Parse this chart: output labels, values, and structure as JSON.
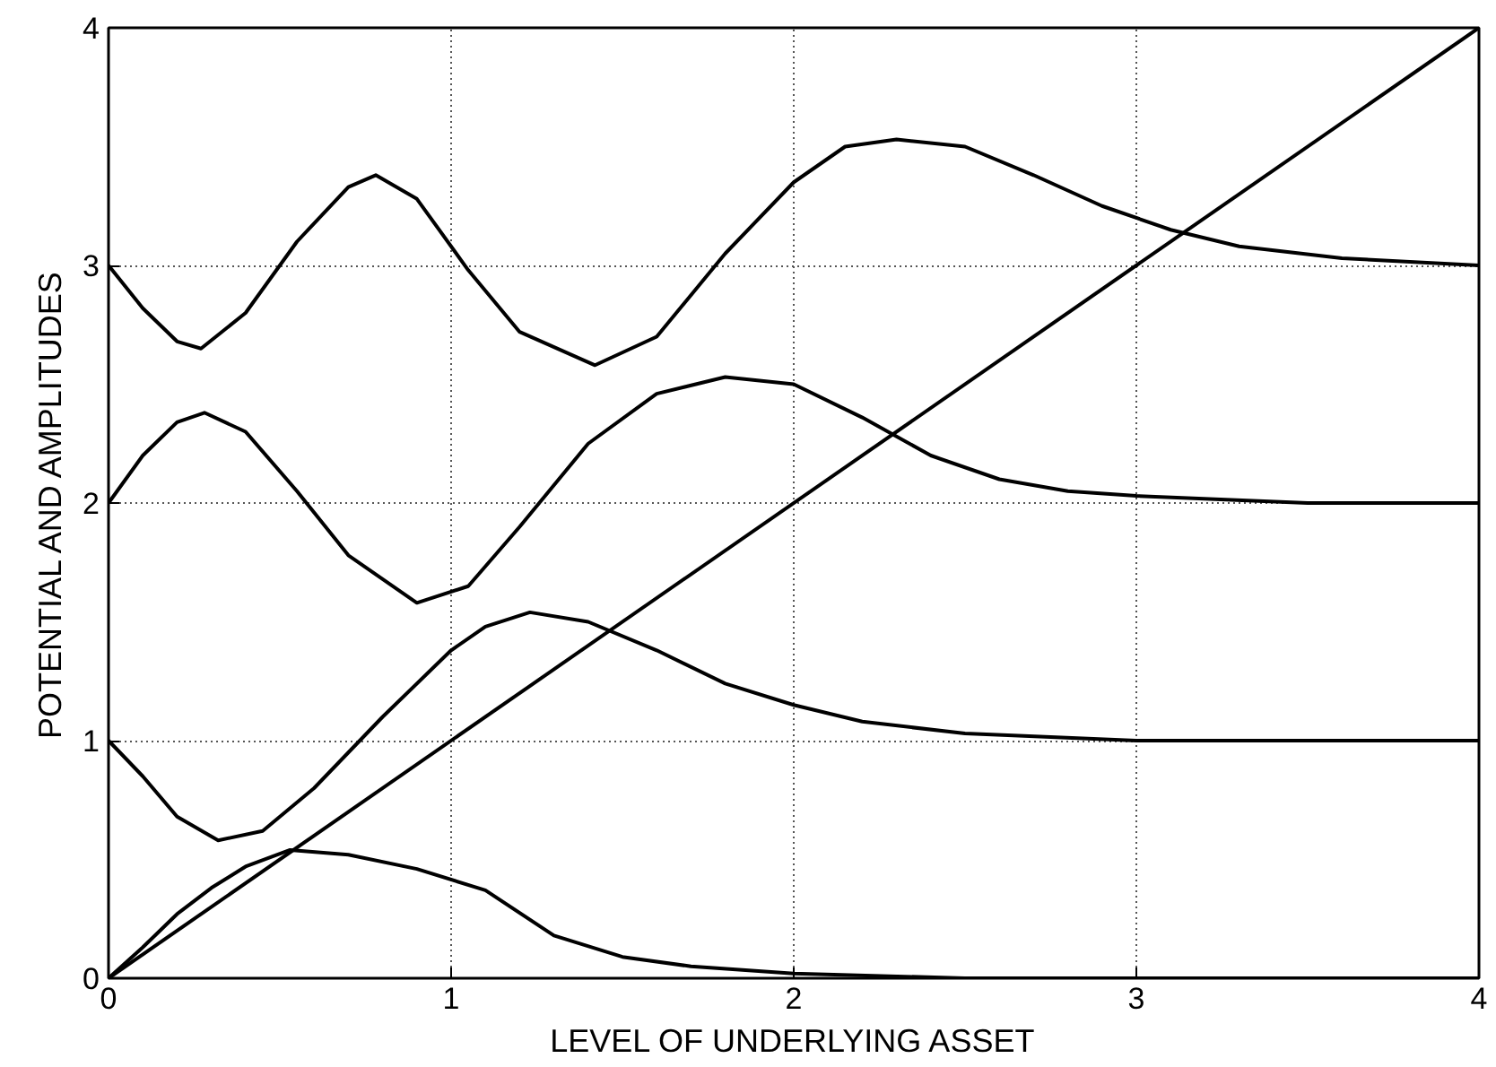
{
  "chart_data": {
    "type": "line",
    "xlabel": "LEVEL OF UNDERLYING ASSET",
    "ylabel": "POTENTIAL AND AMPLITUDES",
    "xlim": [
      0,
      4
    ],
    "ylim": [
      0,
      4
    ],
    "xticks": [
      0,
      1,
      2,
      3,
      4
    ],
    "yticks": [
      0,
      1,
      2,
      3,
      4
    ],
    "grid": true,
    "marker": "none",
    "line_style": "solid",
    "series": [
      {
        "color": "#000000",
        "x": [
          0,
          4
        ],
        "values": [
          0,
          4
        ]
      },
      {
        "color": "#000000",
        "x": [
          0,
          0.1,
          0.2,
          0.3,
          0.4,
          0.53,
          0.7,
          0.9,
          1.1,
          1.3,
          1.5,
          1.7,
          2.0,
          2.5,
          3,
          4
        ],
        "values": [
          0,
          0.13,
          0.27,
          0.38,
          0.47,
          0.54,
          0.52,
          0.46,
          0.37,
          0.18,
          0.09,
          0.05,
          0.02,
          0,
          0,
          0
        ]
      },
      {
        "color": "#000000",
        "x": [
          0,
          0.1,
          0.2,
          0.32,
          0.45,
          0.6,
          0.8,
          1.0,
          1.1,
          1.23,
          1.4,
          1.6,
          1.8,
          2.0,
          2.2,
          2.5,
          3,
          4
        ],
        "values": [
          1.0,
          0.85,
          0.68,
          0.58,
          0.62,
          0.8,
          1.1,
          1.38,
          1.48,
          1.54,
          1.5,
          1.38,
          1.24,
          1.15,
          1.08,
          1.03,
          1.0,
          1.0
        ]
      },
      {
        "color": "#000000",
        "x": [
          0,
          0.1,
          0.2,
          0.28,
          0.4,
          0.55,
          0.7,
          0.9,
          1.05,
          1.2,
          1.4,
          1.6,
          1.8,
          2.0,
          2.2,
          2.4,
          2.6,
          2.8,
          3.0,
          3.5,
          4
        ],
        "values": [
          2.0,
          2.2,
          2.34,
          2.38,
          2.3,
          2.05,
          1.78,
          1.58,
          1.65,
          1.9,
          2.25,
          2.46,
          2.53,
          2.5,
          2.36,
          2.2,
          2.1,
          2.05,
          2.03,
          2.0,
          2.0
        ]
      },
      {
        "color": "#000000",
        "x": [
          0,
          0.1,
          0.2,
          0.27,
          0.4,
          0.55,
          0.7,
          0.78,
          0.9,
          1.05,
          1.2,
          1.42,
          1.6,
          1.8,
          2.0,
          2.15,
          2.3,
          2.5,
          2.7,
          2.9,
          3.1,
          3.3,
          3.6,
          4
        ],
        "values": [
          3.0,
          2.82,
          2.68,
          2.65,
          2.8,
          3.1,
          3.33,
          3.38,
          3.28,
          2.98,
          2.72,
          2.58,
          2.7,
          3.05,
          3.35,
          3.5,
          3.53,
          3.5,
          3.38,
          3.25,
          3.15,
          3.08,
          3.03,
          3.0
        ]
      }
    ]
  }
}
